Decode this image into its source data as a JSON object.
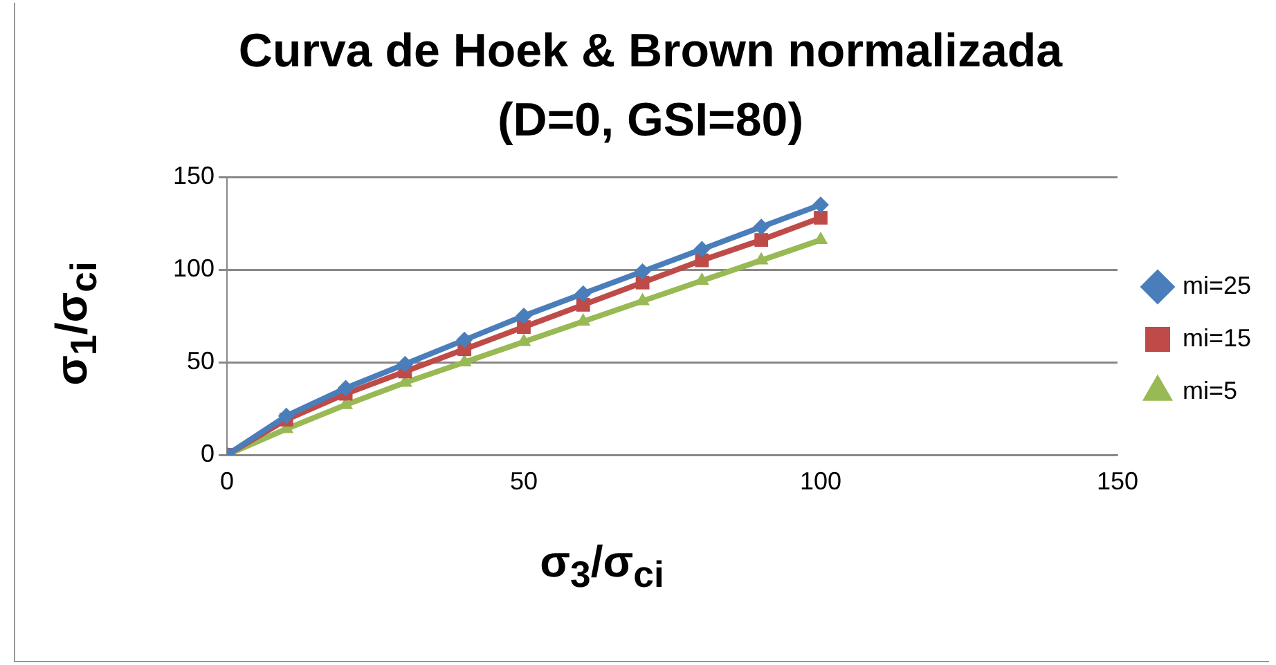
{
  "chart_data": {
    "type": "line",
    "title": "Curva de Hoek & Brown normalizada (D=0, GSI=80)",
    "xlabel": "σ$_{3}$/σ$_{ci}$",
    "ylabel": "σ$_{1}$/σ$_{ci}$",
    "x": [
      0,
      10,
      20,
      30,
      40,
      50,
      60,
      70,
      80,
      90,
      100
    ],
    "series": [
      {
        "name": "mi=25",
        "color": "#4a7ebb",
        "marker": "diamond",
        "values": [
          0,
          21,
          36,
          49,
          62,
          75,
          87,
          99,
          111,
          123,
          135
        ]
      },
      {
        "name": "mi=15",
        "color": "#be4b48",
        "marker": "square",
        "values": [
          0,
          19,
          33,
          45,
          57,
          69,
          81,
          93,
          105,
          116,
          128
        ]
      },
      {
        "name": "mi=5",
        "color": "#98b954",
        "marker": "triangle",
        "values": [
          0,
          14,
          27,
          39,
          50,
          61,
          72,
          83,
          94,
          105,
          116
        ]
      }
    ],
    "xlim": [
      0,
      150
    ],
    "xticks": [
      0,
      50,
      100,
      150
    ],
    "ylim": [
      0,
      150
    ],
    "yticks": [
      0,
      50,
      100,
      150
    ],
    "grid": "y",
    "legend": "right",
    "line_style": "solid"
  }
}
